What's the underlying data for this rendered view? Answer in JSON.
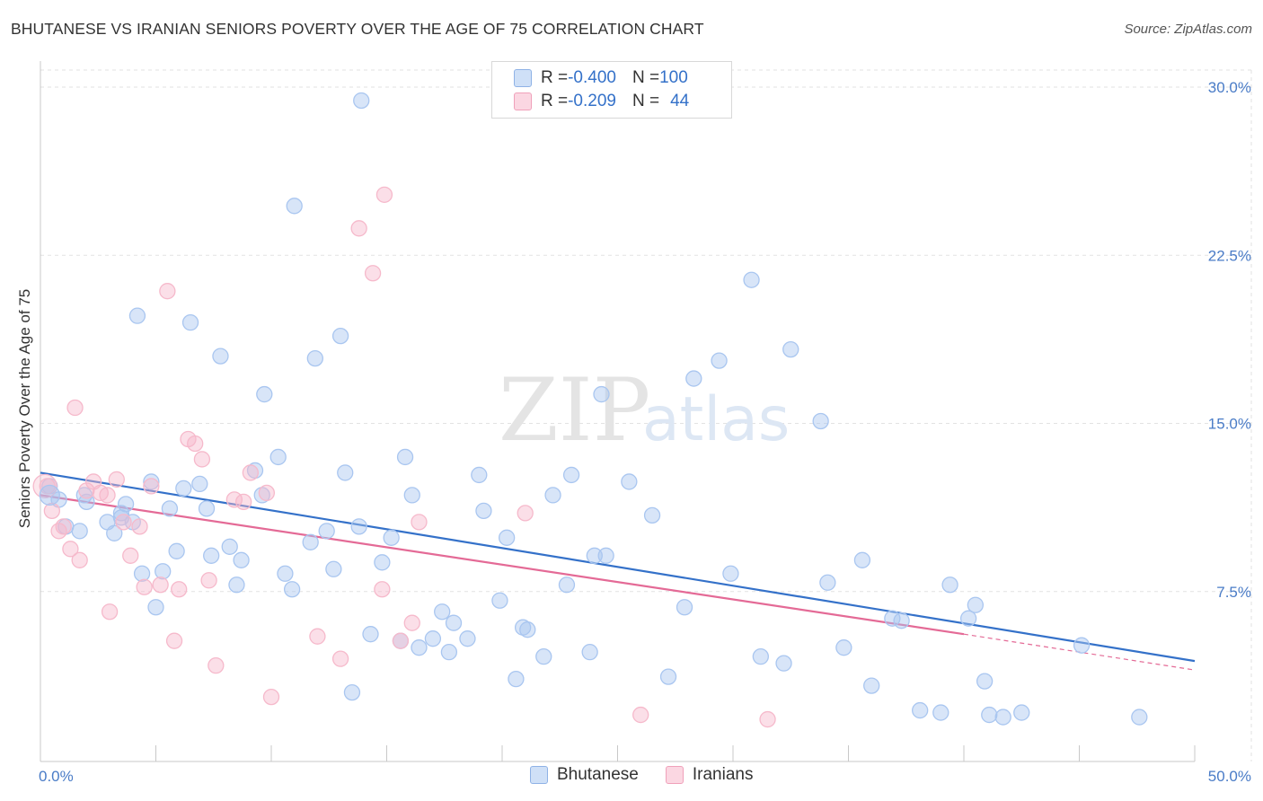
{
  "header": {
    "title": "BHUTANESE VS IRANIAN SENIORS POVERTY OVER THE AGE OF 75 CORRELATION CHART",
    "source": "Source: ZipAtlas.com"
  },
  "watermark": {
    "zip": "ZIP",
    "atlas": "atlas"
  },
  "legend_top": {
    "rows": [
      {
        "r_label": "R = ",
        "r_value": "-0.400",
        "n_label": "N = ",
        "n_value": "100",
        "color": "#a9c6f0"
      },
      {
        "r_label": "R = ",
        "r_value": "-0.209",
        "n_label": "N = ",
        "n_value": "44",
        "color": "#f6b9cb"
      }
    ]
  },
  "legend_bottom": [
    {
      "label": "Bhutanese",
      "color": "#a9c6f0"
    },
    {
      "label": "Iranians",
      "color": "#f6b9cb"
    }
  ],
  "chart_data": {
    "type": "scatter",
    "title": "BHUTANESE VS IRANIAN SENIORS POVERTY OVER THE AGE OF 75 CORRELATION CHART",
    "xlabel": "",
    "ylabel": "Seniors Poverty Over the Age of 75",
    "xlim": [
      0,
      50
    ],
    "ylim": [
      0,
      30
    ],
    "x_tick_labels": [
      "0.0%",
      "50.0%"
    ],
    "y_ticks": [
      7.5,
      15.0,
      22.5,
      30.0
    ],
    "y_tick_labels": [
      "7.5%",
      "15.0%",
      "22.5%",
      "30.0%"
    ],
    "grid": true,
    "legend_position": "top-center",
    "series": [
      {
        "name": "Bhutanese",
        "color": "#3471c9",
        "fill": "#a9c6f0",
        "trend": {
          "x": [
            0,
            50
          ],
          "y": [
            12.8,
            4.4
          ]
        },
        "points": [
          [
            0.4,
            12.2
          ],
          [
            0.8,
            11.6
          ],
          [
            1.1,
            10.4
          ],
          [
            1.7,
            10.2
          ],
          [
            1.9,
            11.8
          ],
          [
            2.0,
            11.5
          ],
          [
            2.9,
            10.6
          ],
          [
            3.2,
            10.1
          ],
          [
            3.5,
            11.0
          ],
          [
            3.5,
            10.8
          ],
          [
            3.7,
            11.4
          ],
          [
            4.0,
            10.6
          ],
          [
            4.2,
            19.8
          ],
          [
            4.4,
            8.3
          ],
          [
            4.8,
            12.4
          ],
          [
            5.0,
            6.8
          ],
          [
            5.3,
            8.4
          ],
          [
            5.6,
            11.2
          ],
          [
            5.9,
            9.3
          ],
          [
            6.2,
            12.1
          ],
          [
            6.5,
            19.5
          ],
          [
            6.9,
            12.3
          ],
          [
            7.2,
            11.2
          ],
          [
            7.4,
            9.1
          ],
          [
            7.8,
            18.0
          ],
          [
            8.2,
            9.5
          ],
          [
            8.5,
            7.8
          ],
          [
            8.7,
            8.9
          ],
          [
            9.3,
            12.9
          ],
          [
            9.6,
            11.8
          ],
          [
            9.7,
            16.3
          ],
          [
            10.3,
            13.5
          ],
          [
            10.6,
            8.3
          ],
          [
            10.9,
            7.6
          ],
          [
            11.0,
            24.7
          ],
          [
            11.7,
            9.7
          ],
          [
            11.9,
            17.9
          ],
          [
            12.4,
            10.2
          ],
          [
            12.7,
            8.5
          ],
          [
            13.0,
            18.9
          ],
          [
            13.2,
            12.8
          ],
          [
            13.5,
            3.0
          ],
          [
            13.8,
            10.4
          ],
          [
            13.9,
            29.4
          ],
          [
            14.3,
            5.6
          ],
          [
            14.8,
            8.8
          ],
          [
            15.2,
            9.9
          ],
          [
            15.6,
            5.3
          ],
          [
            15.8,
            13.5
          ],
          [
            16.1,
            11.8
          ],
          [
            16.4,
            5.0
          ],
          [
            17.0,
            5.4
          ],
          [
            17.4,
            6.6
          ],
          [
            17.7,
            4.8
          ],
          [
            17.9,
            6.1
          ],
          [
            18.5,
            5.4
          ],
          [
            19.0,
            12.7
          ],
          [
            19.2,
            11.1
          ],
          [
            19.9,
            7.1
          ],
          [
            20.2,
            9.9
          ],
          [
            20.6,
            3.6
          ],
          [
            20.9,
            5.9
          ],
          [
            21.1,
            5.8
          ],
          [
            21.8,
            4.6
          ],
          [
            22.2,
            11.8
          ],
          [
            22.8,
            7.8
          ],
          [
            23.0,
            12.7
          ],
          [
            23.8,
            4.8
          ],
          [
            24.0,
            9.1
          ],
          [
            24.5,
            9.1
          ],
          [
            24.3,
            16.3
          ],
          [
            25.5,
            12.4
          ],
          [
            26.5,
            10.9
          ],
          [
            27.2,
            3.7
          ],
          [
            27.9,
            6.8
          ],
          [
            28.3,
            17.0
          ],
          [
            29.4,
            17.8
          ],
          [
            29.9,
            8.3
          ],
          [
            30.8,
            21.4
          ],
          [
            31.2,
            4.6
          ],
          [
            32.2,
            4.3
          ],
          [
            32.5,
            18.3
          ],
          [
            33.8,
            15.1
          ],
          [
            34.1,
            7.9
          ],
          [
            34.8,
            5.0
          ],
          [
            35.6,
            8.9
          ],
          [
            36.0,
            3.3
          ],
          [
            36.9,
            6.3
          ],
          [
            37.3,
            6.2
          ],
          [
            38.1,
            2.2
          ],
          [
            39.0,
            2.1
          ],
          [
            39.4,
            7.8
          ],
          [
            40.2,
            6.3
          ],
          [
            40.5,
            6.9
          ],
          [
            40.9,
            3.5
          ],
          [
            41.1,
            2.0
          ],
          [
            41.7,
            1.9
          ],
          [
            42.5,
            2.1
          ],
          [
            45.1,
            5.1
          ],
          [
            47.6,
            1.9
          ]
        ]
      },
      {
        "name": "Iranians",
        "color": "#e46a96",
        "fill": "#f6b9cb",
        "trend": {
          "x": [
            0,
            40
          ],
          "y": [
            11.8,
            5.6
          ],
          "dashed_to": {
            "x": 50,
            "y": 4.0
          }
        },
        "points": [
          [
            0.3,
            12.2
          ],
          [
            0.5,
            11.1
          ],
          [
            0.8,
            10.2
          ],
          [
            1.0,
            10.4
          ],
          [
            1.3,
            9.4
          ],
          [
            1.5,
            15.7
          ],
          [
            1.7,
            8.9
          ],
          [
            2.0,
            12.0
          ],
          [
            2.3,
            12.4
          ],
          [
            2.6,
            11.9
          ],
          [
            2.9,
            11.8
          ],
          [
            3.0,
            6.6
          ],
          [
            3.3,
            12.5
          ],
          [
            3.6,
            10.6
          ],
          [
            3.9,
            9.1
          ],
          [
            4.3,
            10.4
          ],
          [
            4.5,
            7.7
          ],
          [
            4.8,
            12.2
          ],
          [
            5.2,
            7.8
          ],
          [
            5.5,
            20.9
          ],
          [
            5.8,
            5.3
          ],
          [
            6.0,
            7.6
          ],
          [
            6.4,
            14.3
          ],
          [
            6.7,
            14.1
          ],
          [
            7.0,
            13.4
          ],
          [
            7.3,
            8.0
          ],
          [
            7.6,
            4.2
          ],
          [
            8.4,
            11.6
          ],
          [
            8.8,
            11.5
          ],
          [
            9.1,
            12.8
          ],
          [
            9.8,
            11.9
          ],
          [
            10.0,
            2.8
          ],
          [
            12.0,
            5.5
          ],
          [
            13.0,
            4.5
          ],
          [
            13.8,
            23.7
          ],
          [
            14.4,
            21.7
          ],
          [
            14.9,
            25.2
          ],
          [
            14.8,
            7.6
          ],
          [
            15.6,
            5.3
          ],
          [
            16.1,
            6.1
          ],
          [
            16.4,
            10.6
          ],
          [
            21.0,
            11.0
          ],
          [
            26.0,
            2.0
          ],
          [
            31.5,
            1.8
          ]
        ]
      }
    ]
  }
}
